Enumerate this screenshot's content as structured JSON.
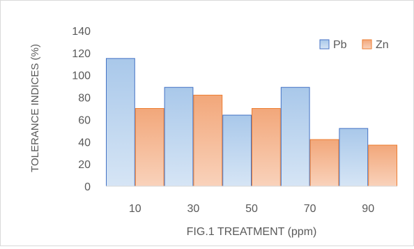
{
  "chart_data": {
    "type": "bar",
    "title": "",
    "xlabel": "FIG.1 TREATMENT (ppm)",
    "ylabel": "TOLERANCE INDICES (%)",
    "categories": [
      "10",
      "30",
      "50",
      "70",
      "90"
    ],
    "series": [
      {
        "name": "Pb",
        "values": [
          115,
          89,
          64,
          89,
          52
        ],
        "color": "#9dc3e6"
      },
      {
        "name": "Zn",
        "values": [
          70,
          82,
          70,
          42,
          37
        ],
        "color": "#f4b183"
      }
    ],
    "ylim": [
      0,
      140
    ],
    "yticks": [
      "0",
      "20",
      "40",
      "60",
      "80",
      "100",
      "120",
      "140"
    ],
    "grid": false,
    "legend": "top-right"
  }
}
